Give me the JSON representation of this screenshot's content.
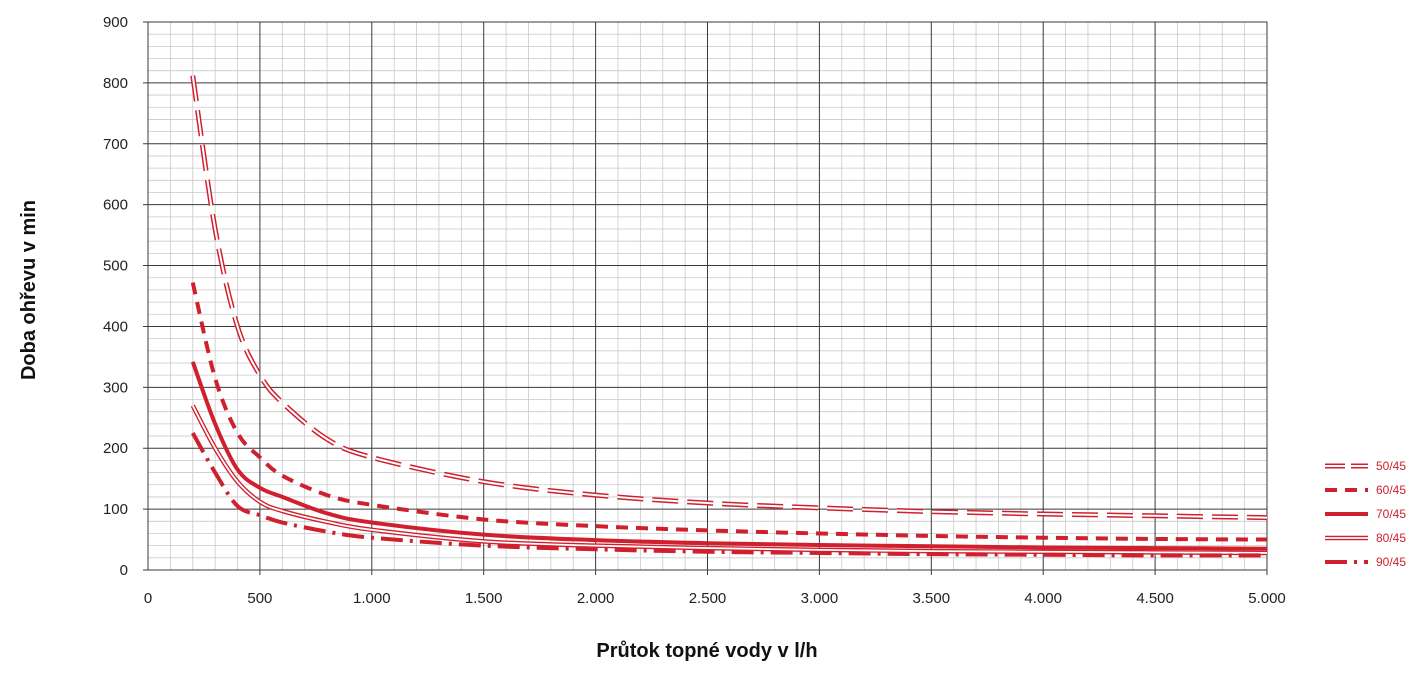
{
  "chart_data": {
    "type": "line",
    "title": "",
    "xlabel": "Průtok topné vody v l/h",
    "ylabel": "Doba ohřevu v min",
    "xlim": [
      0,
      5000
    ],
    "ylim": [
      0,
      900
    ],
    "x_ticks": [
      0,
      500,
      1000,
      1500,
      2000,
      2500,
      3000,
      3500,
      4000,
      4500,
      5000
    ],
    "x_tick_labels": [
      "0",
      "500",
      "1.000",
      "1.500",
      "2.000",
      "2.500",
      "3.000",
      "3.500",
      "4.000",
      "4.500",
      "5.000"
    ],
    "y_ticks": [
      0,
      100,
      200,
      300,
      400,
      500,
      600,
      700,
      800,
      900
    ],
    "y_tick_labels": [
      "0",
      "100",
      "200",
      "300",
      "400",
      "500",
      "600",
      "700",
      "800",
      "900"
    ],
    "grid": true,
    "legend_position": "right",
    "color": "#d0202e",
    "series": [
      {
        "name": "50/45",
        "style": "double-dashed",
        "x": [
          200,
          300,
          400,
          500,
          600,
          800,
          1000,
          1500,
          2000,
          2500,
          3000,
          3500,
          4000,
          4500,
          5000
        ],
        "y": [
          812,
          560,
          400,
          320,
          275,
          215,
          185,
          145,
          123,
          110,
          102,
          96,
          92,
          89,
          86
        ]
      },
      {
        "name": "60/45",
        "style": "dashed",
        "x": [
          200,
          300,
          400,
          500,
          600,
          800,
          1000,
          1500,
          2000,
          2500,
          3000,
          3500,
          4000,
          4500,
          5000
        ],
        "y": [
          472,
          315,
          225,
          185,
          155,
          123,
          107,
          83,
          72,
          65,
          60,
          56,
          53,
          51,
          50
        ]
      },
      {
        "name": "70/45",
        "style": "solid",
        "x": [
          200,
          300,
          400,
          500,
          600,
          800,
          1000,
          1500,
          2000,
          2500,
          3000,
          3500,
          4000,
          4500,
          5000
        ],
        "y": [
          342,
          240,
          165,
          135,
          120,
          93,
          78,
          58,
          49,
          44,
          41,
          39,
          37,
          36,
          35
        ]
      },
      {
        "name": "80/45",
        "style": "double",
        "x": [
          200,
          300,
          400,
          500,
          600,
          800,
          1000,
          1500,
          2000,
          2500,
          3000,
          3500,
          4000,
          4500,
          5000
        ],
        "y": [
          270,
          200,
          145,
          112,
          97,
          79,
          66,
          47,
          40,
          36,
          33,
          31,
          30,
          29,
          28
        ]
      },
      {
        "name": "90/45",
        "style": "dash-dot",
        "x": [
          200,
          300,
          400,
          500,
          600,
          800,
          1000,
          1500,
          2000,
          2500,
          3000,
          3500,
          4000,
          4500,
          5000
        ],
        "y": [
          225,
          160,
          105,
          90,
          78,
          63,
          53,
          40,
          34,
          30,
          28,
          26,
          25,
          24,
          24
        ]
      }
    ]
  }
}
